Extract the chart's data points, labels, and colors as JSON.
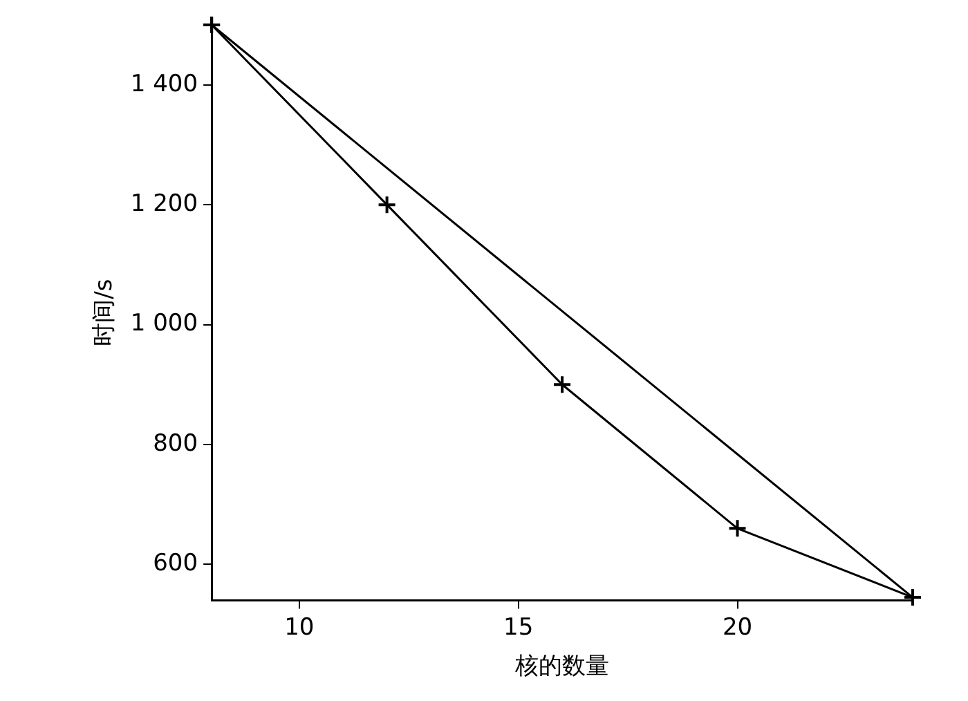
{
  "chart_data": {
    "type": "line",
    "xlabel": "核的数量",
    "ylabel": "时间/s",
    "x": [
      8,
      12,
      16,
      20,
      24
    ],
    "series": [
      {
        "color": "#000000",
        "values": [
          1500,
          1200,
          900,
          660,
          545
        ]
      },
      {
        "type": "line",
        "color": "#000000",
        "x": [
          8,
          24
        ],
        "values": [
          1500,
          545
        ]
      }
    ],
    "xlim": [
      8,
      24
    ],
    "xticks": [
      10,
      15,
      20
    ],
    "ylim": [
      540,
      1500
    ],
    "yticks": [
      {
        "value": 600,
        "label": "600"
      },
      {
        "value": 800,
        "label": "800"
      },
      {
        "value": 1000,
        "label": "1 000"
      },
      {
        "value": 1200,
        "label": "1 200"
      },
      {
        "value": 1400,
        "label": "1 400"
      }
    ],
    "marker": "cross",
    "line_style": "solid",
    "legend": false
  }
}
